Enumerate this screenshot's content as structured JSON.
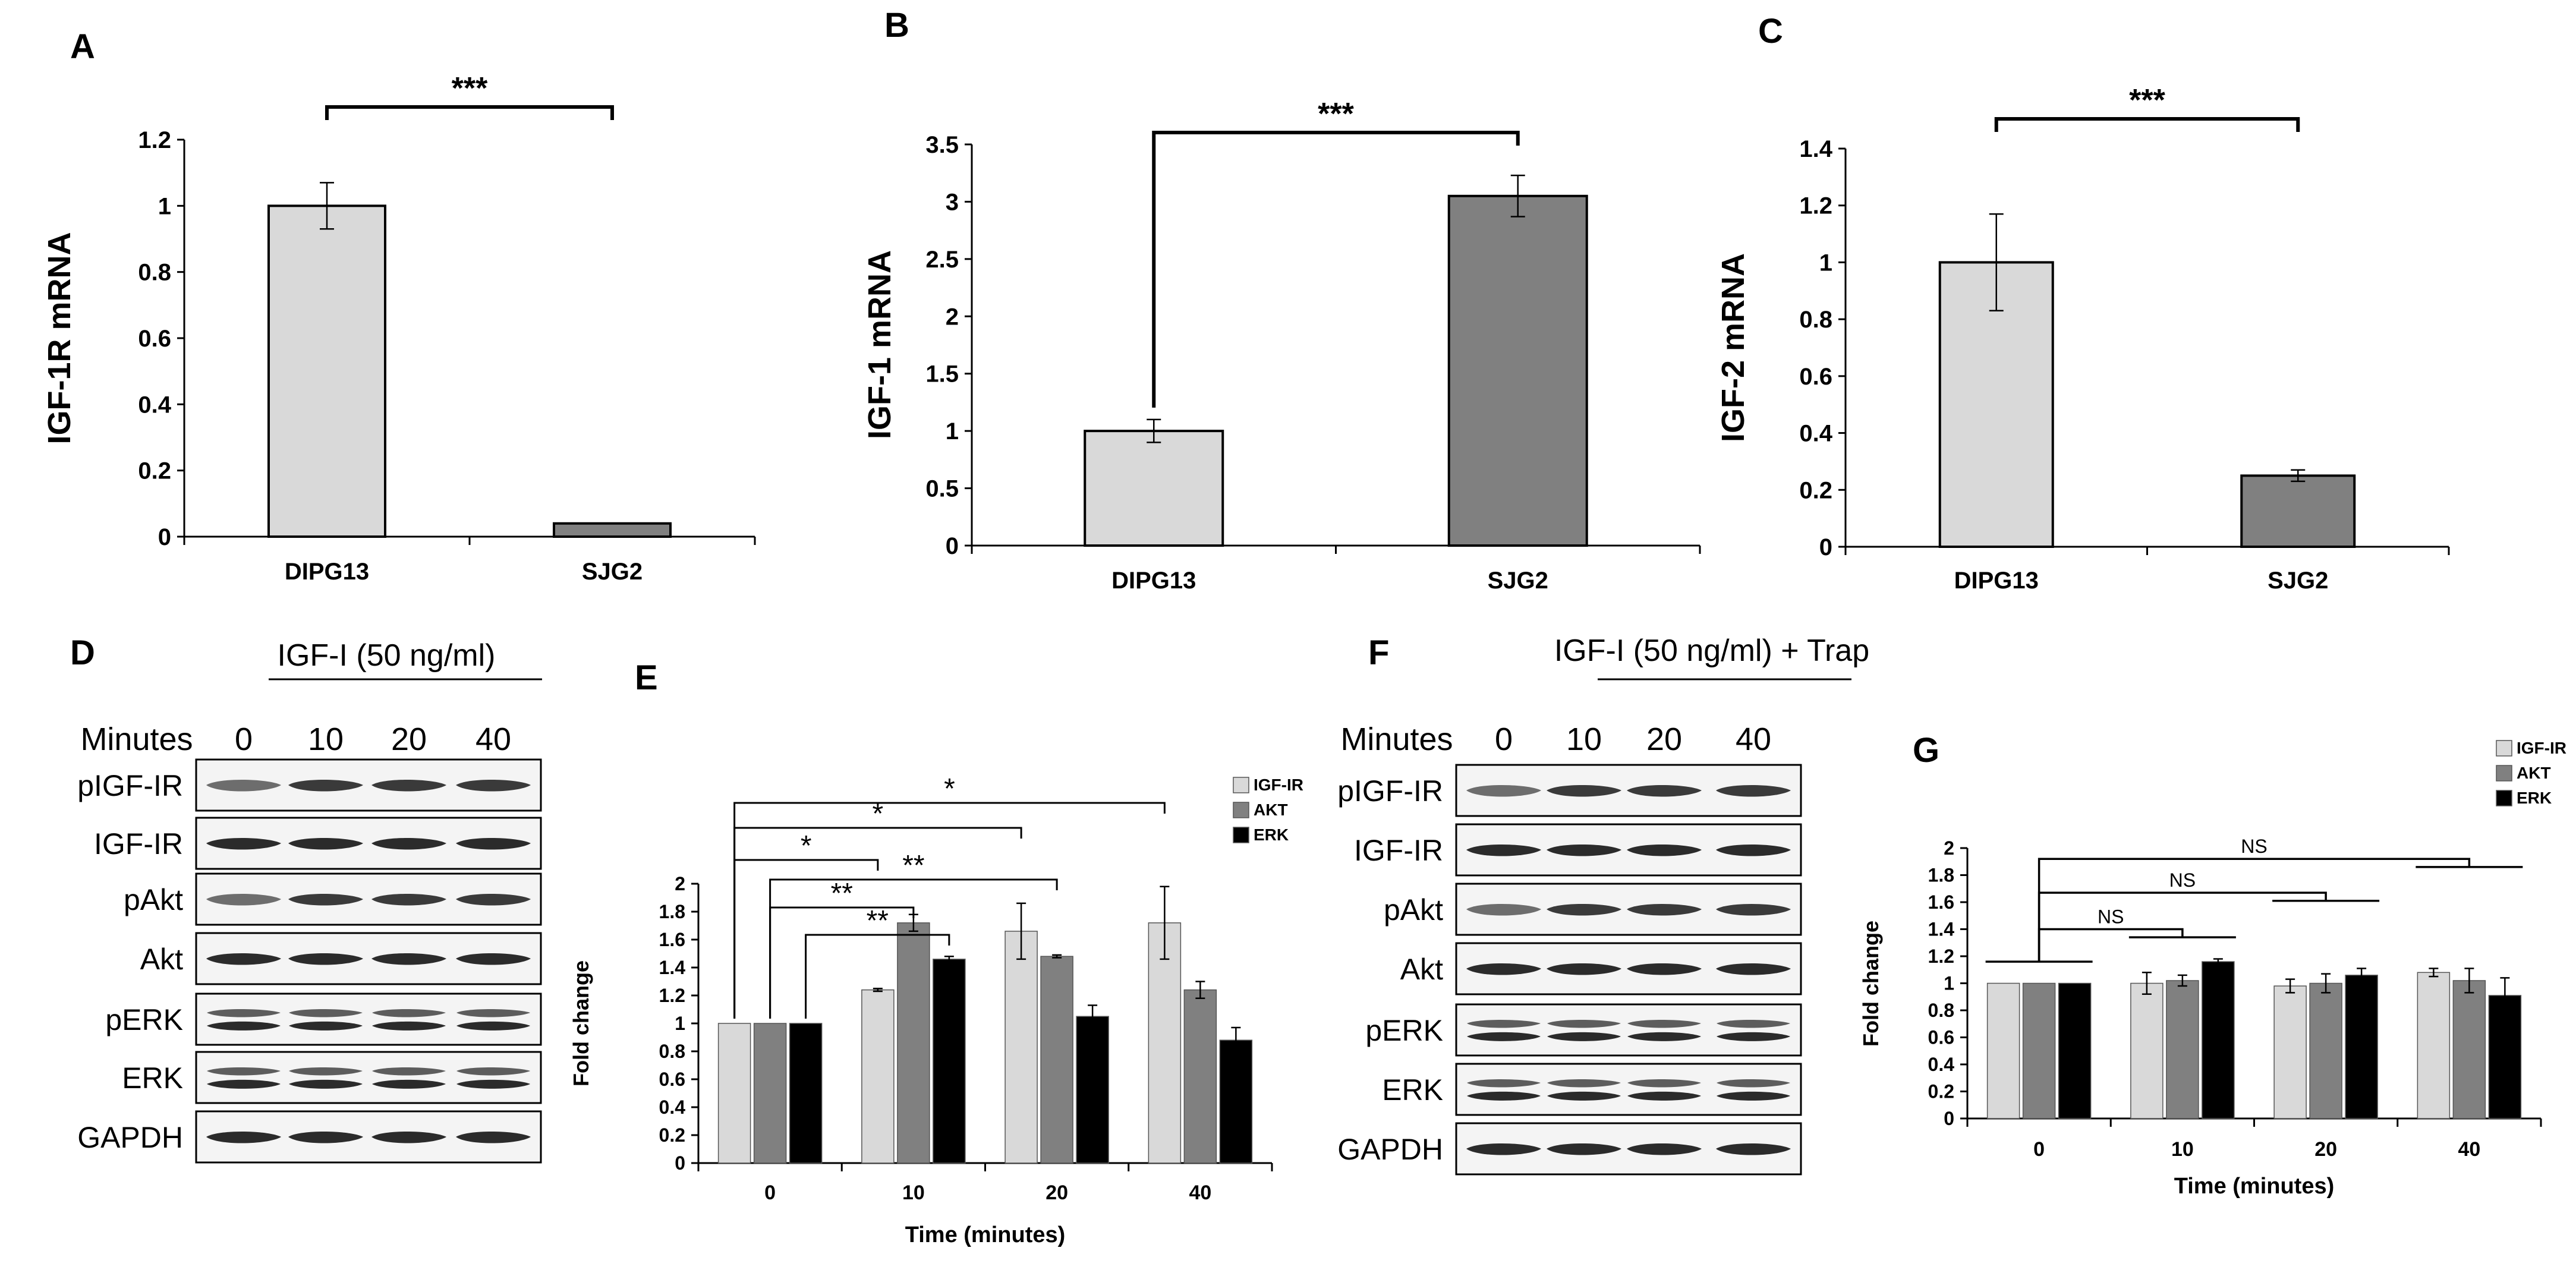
{
  "panels": {
    "A": "A",
    "B": "B",
    "C": "C",
    "D": "D",
    "E": "E",
    "F": "F",
    "G": "G"
  },
  "chart_data": [
    {
      "id": "A",
      "type": "bar",
      "categories": [
        "DIPG13",
        "SJG2"
      ],
      "values": [
        1.0,
        0.04
      ],
      "errors": [
        0.07,
        0.0
      ],
      "colors": [
        "#d9d9d9",
        "#808080"
      ],
      "ylabel": "IGF-1R mRNA",
      "ylim": [
        0,
        1.2
      ],
      "yticks": [
        0,
        0.2,
        0.4,
        0.6,
        0.8,
        1,
        1.2
      ],
      "ytick_labels": [
        "0",
        "0.2",
        "0.4",
        "0.6",
        "0.8",
        "1",
        "1.2"
      ],
      "significance": "***"
    },
    {
      "id": "B",
      "type": "bar",
      "categories": [
        "DIPG13",
        "SJG2"
      ],
      "values": [
        1.0,
        3.05
      ],
      "errors": [
        0.1,
        0.18
      ],
      "colors": [
        "#d9d9d9",
        "#808080"
      ],
      "ylabel": "IGF-1 mRNA",
      "ylim": [
        0,
        3.5
      ],
      "yticks": [
        0,
        0.5,
        1,
        1.5,
        2,
        2.5,
        3,
        3.5
      ],
      "ytick_labels": [
        "0",
        "0.5",
        "1",
        "1.5",
        "2",
        "2.5",
        "3",
        "3.5"
      ],
      "significance": "***"
    },
    {
      "id": "C",
      "type": "bar",
      "categories": [
        "DIPG13",
        "SJG2"
      ],
      "values": [
        1.0,
        0.25
      ],
      "errors": [
        0.17,
        0.02
      ],
      "colors": [
        "#d9d9d9",
        "#808080"
      ],
      "ylabel": "IGF-2 mRNA",
      "ylim": [
        0,
        1.4
      ],
      "yticks": [
        0,
        0.2,
        0.4,
        0.6,
        0.8,
        1,
        1.2,
        1.4
      ],
      "ytick_labels": [
        "0",
        "0.2",
        "0.4",
        "0.6",
        "0.8",
        "1",
        "1.2",
        "1.4"
      ],
      "significance": "***"
    },
    {
      "id": "E",
      "type": "bar",
      "categories": [
        "0",
        "10",
        "20",
        "40"
      ],
      "series": [
        {
          "name": "IGF-IR",
          "color": "#d9d9d9",
          "values": [
            1.0,
            1.24,
            1.66,
            1.72
          ],
          "errors": [
            0,
            0.01,
            0.2,
            0.26
          ]
        },
        {
          "name": "AKT",
          "color": "#808080",
          "values": [
            1.0,
            1.72,
            1.48,
            1.24
          ],
          "errors": [
            0,
            0.06,
            0.01,
            0.06
          ]
        },
        {
          "name": "ERK",
          "color": "#000000",
          "values": [
            1.0,
            1.46,
            1.05,
            0.88
          ],
          "errors": [
            0,
            0.02,
            0.08,
            0.09
          ]
        }
      ],
      "xlabel": "Time (minutes)",
      "ylabel": "Fold change",
      "ylim": [
        0,
        2
      ],
      "yticks": [
        0,
        0.2,
        0.4,
        0.6,
        0.8,
        1,
        1.2,
        1.4,
        1.6,
        1.8,
        2
      ],
      "ytick_labels": [
        "0",
        "0.2",
        "0.4",
        "0.6",
        "0.8",
        "1",
        "1.2",
        "1.4",
        "1.6",
        "1.8",
        "2"
      ],
      "significance": [
        "*",
        "*",
        "*",
        "**",
        "**",
        "**"
      ]
    },
    {
      "id": "G",
      "type": "bar",
      "categories": [
        "0",
        "10",
        "20",
        "40"
      ],
      "series": [
        {
          "name": "IGF-IR",
          "color": "#d9d9d9",
          "values": [
            1.0,
            1.0,
            0.98,
            1.08
          ],
          "errors": [
            0,
            0.08,
            0.05,
            0.03
          ]
        },
        {
          "name": "AKT",
          "color": "#808080",
          "values": [
            1.0,
            1.02,
            1.0,
            1.02
          ],
          "errors": [
            0,
            0.04,
            0.07,
            0.09
          ]
        },
        {
          "name": "ERK",
          "color": "#000000",
          "values": [
            1.0,
            1.16,
            1.06,
            0.91
          ],
          "errors": [
            0,
            0.02,
            0.05,
            0.13
          ]
        }
      ],
      "xlabel": "Time (minutes)",
      "ylabel": "Fold change",
      "ylim": [
        0,
        2
      ],
      "yticks": [
        0,
        0.2,
        0.4,
        0.6,
        0.8,
        1,
        1.2,
        1.4,
        1.6,
        1.8,
        2
      ],
      "ytick_labels": [
        "0",
        "0.2",
        "0.4",
        "0.6",
        "0.8",
        "1",
        "1.2",
        "1.4",
        "1.6",
        "1.8",
        "2"
      ],
      "significance": [
        "NS",
        "NS",
        "NS"
      ]
    }
  ],
  "blots": [
    {
      "id": "D",
      "treatment": "IGF-I (50 ng/ml)",
      "minutes_label": "Minutes",
      "timepoints": [
        "0",
        "10",
        "20",
        "40"
      ],
      "proteins": [
        "pIGF-IR",
        "IGF-IR",
        "pAkt",
        "Akt",
        "pERK",
        "ERK",
        "GAPDH"
      ]
    },
    {
      "id": "F",
      "treatment": "IGF-I (50 ng/ml) + Trap",
      "minutes_label": "Minutes",
      "timepoints": [
        "0",
        "10",
        "20",
        "40"
      ],
      "proteins": [
        "pIGF-IR",
        "IGF-IR",
        "pAkt",
        "Akt",
        "pERK",
        "ERK",
        "GAPDH"
      ]
    }
  ]
}
